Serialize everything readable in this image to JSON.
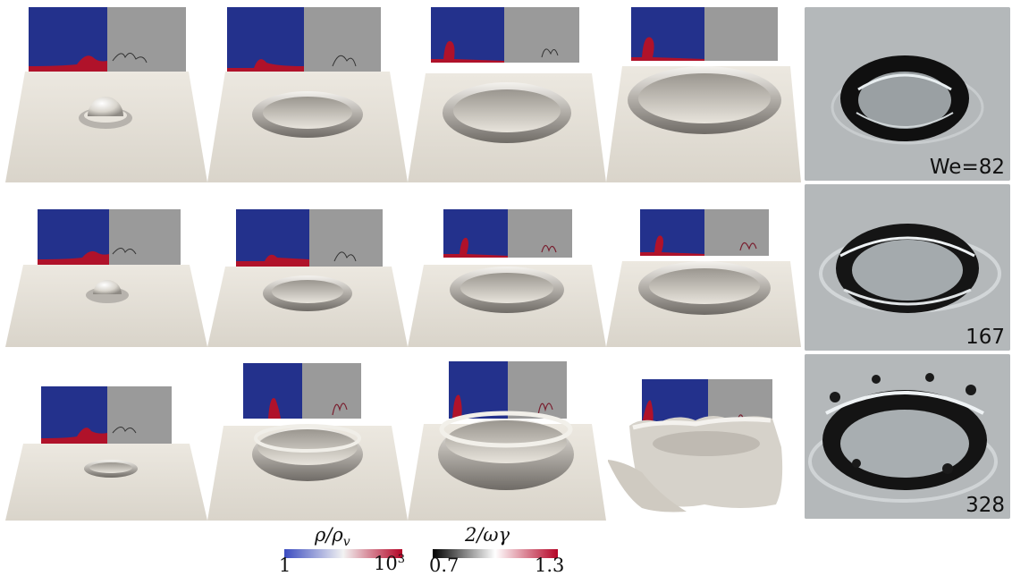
{
  "panels": {
    "photo_labels": [
      "We=82",
      "167",
      "328"
    ]
  },
  "colorbars": {
    "density": {
      "label": "ρ/ρ_v",
      "label_main": "ρ/ρ",
      "label_sub": "v",
      "min": "1",
      "max_base": "10",
      "max_exp": "3",
      "colors": [
        "#3b4cc0",
        "#f7f7f7",
        "#b40426"
      ]
    },
    "vorticity": {
      "label": "2/ωγ",
      "min": "0.7",
      "max": "1.3",
      "colors": [
        "#000000",
        "#ffffff",
        "#b40426"
      ]
    }
  },
  "colors": {
    "liquid": "#b0122a",
    "gas": "#23318c",
    "background_panel": "#9a9a9a",
    "surface": "#e6e2da"
  }
}
